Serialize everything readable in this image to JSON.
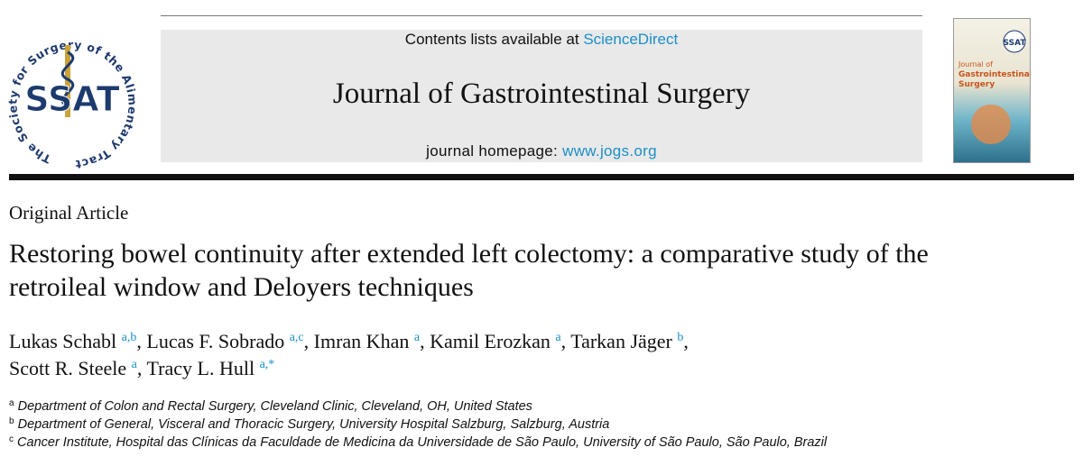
{
  "header": {
    "contents_prefix": "Contents lists available at",
    "contents_link": "ScienceDirect",
    "journal_title": "Journal of Gastrointestinal Surgery",
    "homepage_prefix": "journal homepage:",
    "homepage_link": "www.jogs.org"
  },
  "logo": {
    "initials": "SSAT",
    "ring_text": "The Society for Surgery of the Alimentary Tract"
  },
  "cover": {
    "badge": "SSAT",
    "title_line1": "Journal of",
    "title_line2": "Gastrointestinal",
    "title_line3": "Surgery"
  },
  "article": {
    "type": "Original Article",
    "title": "Restoring bowel continuity after extended left colectomy: a comparative study of the retroileal window and Deloyers techniques",
    "author_separator": ",",
    "authors": [
      {
        "name": "Lukas Schabl",
        "affiliations": "a,b"
      },
      {
        "name": "Lucas F. Sobrado",
        "affiliations": "a,c"
      },
      {
        "name": "Imran Khan",
        "affiliations": "a"
      },
      {
        "name": "Kamil Erozkan",
        "affiliations": "a"
      },
      {
        "name": "Tarkan Jäger",
        "affiliations": "b"
      },
      {
        "name": "Scott R. Steele",
        "affiliations": "a"
      },
      {
        "name": "Tracy L. Hull",
        "affiliations": "a,*"
      }
    ],
    "affiliations": [
      {
        "label": "a",
        "text": "Department of Colon and Rectal Surgery, Cleveland Clinic, Cleveland, OH, United States"
      },
      {
        "label": "b",
        "text": "Department of General, Visceral and Thoracic Surgery, University Hospital Salzburg, Salzburg, Austria"
      },
      {
        "label": "c",
        "text": "Cancer Institute, Hospital das Clínicas da Faculdade de Medicina da Universidade de São Paulo, University of São Paulo, São Paulo, Brazil"
      }
    ]
  }
}
